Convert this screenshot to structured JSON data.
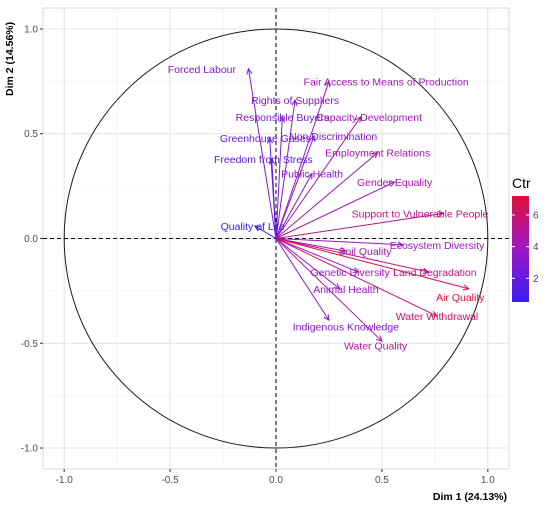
{
  "chart_data": {
    "type": "scatter",
    "subtype": "pca-variable-correlation-circle",
    "title": "",
    "xlabel": "Dim 1 (24.13%)",
    "ylabel": "Dim 2 (14.56%)",
    "xlim": [
      -1.1,
      1.1
    ],
    "ylim": [
      -1.1,
      1.1
    ],
    "x_ticks": [
      -1.0,
      -0.5,
      0.0,
      0.5,
      1.0
    ],
    "x_tick_labels": [
      "-1.0",
      "-0.5",
      "0.0",
      "0.5",
      "1.0"
    ],
    "y_ticks": [
      -1.0,
      -0.5,
      0.0,
      0.5,
      1.0
    ],
    "y_tick_labels": [
      "-1.0",
      "-0.5",
      "0.0",
      "0.5",
      "1.0"
    ],
    "grid": true,
    "unit_circle": true,
    "legend": {
      "title": "Ctr",
      "placement": "right",
      "ticks": [
        2,
        4,
        6
      ],
      "tick_labels": [
        "2",
        "4",
        "6"
      ],
      "range": [
        0.5,
        7.2
      ],
      "colors": [
        "#3a1cf0",
        "#9a18c8",
        "#e0103a"
      ]
    },
    "variables": [
      {
        "name": "Forced Labour",
        "x": -0.13,
        "y": 0.81,
        "ctr": 3.0,
        "label_dx": -0.22,
        "label_dy": 0.0
      },
      {
        "name": "Fair Access to Means of Production",
        "x": 0.25,
        "y": 0.75,
        "ctr": 4.2,
        "label_dx": 0.27,
        "label_dy": 0.0
      },
      {
        "name": "Rights of Suppliers",
        "x": 0.09,
        "y": 0.66,
        "ctr": 3.0,
        "label_dx": 0.0,
        "label_dy": 0.0
      },
      {
        "name": "Responsible Buyers",
        "x": 0.03,
        "y": 0.58,
        "ctr": 2.8,
        "label_dx": 0.0,
        "label_dy": 0.0
      },
      {
        "name": "Capacity Development",
        "x": 0.4,
        "y": 0.58,
        "ctr": 4.2,
        "label_dx": 0.04,
        "label_dy": 0.0
      },
      {
        "name": "Greenhouse Gases",
        "x": -0.03,
        "y": 0.48,
        "ctr": 2.2,
        "label_dx": -0.02,
        "label_dy": 0.0
      },
      {
        "name": "Non Discrimination",
        "x": 0.18,
        "y": 0.49,
        "ctr": 3.2,
        "label_dx": 0.09,
        "label_dy": 0.0
      },
      {
        "name": "Employment Relations",
        "x": 0.48,
        "y": 0.41,
        "ctr": 4.3,
        "label_dx": 0.0,
        "label_dy": 0.0
      },
      {
        "name": "Freedom from Stress",
        "x": -0.02,
        "y": 0.38,
        "ctr": 1.8,
        "label_dx": -0.04,
        "label_dy": 0.0
      },
      {
        "name": "Public Health",
        "x": 0.17,
        "y": 0.31,
        "ctr": 3.3,
        "label_dx": 0.0,
        "label_dy": 0.0
      },
      {
        "name": "Gender Equality",
        "x": 0.56,
        "y": 0.27,
        "ctr": 4.5,
        "label_dx": 0.0,
        "label_dy": 0.0
      },
      {
        "name": "Support to Vulnerable People",
        "x": 0.79,
        "y": 0.12,
        "ctr": 5.5,
        "label_dx": -0.11,
        "label_dy": 0.0
      },
      {
        "name": "Quality of Life",
        "x": -0.1,
        "y": 0.06,
        "ctr": 0.6,
        "label_dx": -0.01,
        "label_dy": 0.0
      },
      {
        "name": "Ecosystem Diversity",
        "x": 0.6,
        "y": -0.03,
        "ctr": 4.0,
        "label_dx": 0.16,
        "label_dy": 0.0
      },
      {
        "name": "Soil Quality",
        "x": 0.33,
        "y": -0.06,
        "ctr": 4.4,
        "label_dx": 0.09,
        "label_dy": 0.0
      },
      {
        "name": "Land Degradation",
        "x": 0.72,
        "y": -0.16,
        "ctr": 5.6,
        "label_dx": 0.03,
        "label_dy": 0.0
      },
      {
        "name": "Genetic Diversity",
        "x": 0.39,
        "y": -0.16,
        "ctr": 4.1,
        "label_dx": -0.04,
        "label_dy": 0.0
      },
      {
        "name": "Air Quality",
        "x": 0.91,
        "y": -0.24,
        "ctr": 7.0,
        "label_dx": -0.04,
        "label_dy": -0.04
      },
      {
        "name": "Animal Health",
        "x": 0.3,
        "y": -0.24,
        "ctr": 3.8,
        "label_dx": 0.03,
        "label_dy": 0.0
      },
      {
        "name": "Water Withdrawal",
        "x": 0.76,
        "y": -0.37,
        "ctr": 6.0,
        "label_dx": 0.0,
        "label_dy": 0.0
      },
      {
        "name": "Indigenous Knowledge",
        "x": 0.25,
        "y": -0.39,
        "ctr": 3.2,
        "label_dx": 0.08,
        "label_dy": -0.03
      },
      {
        "name": "Water Quality",
        "x": 0.5,
        "y": -0.49,
        "ctr": 4.8,
        "label_dx": -0.03,
        "label_dy": -0.02
      }
    ]
  }
}
